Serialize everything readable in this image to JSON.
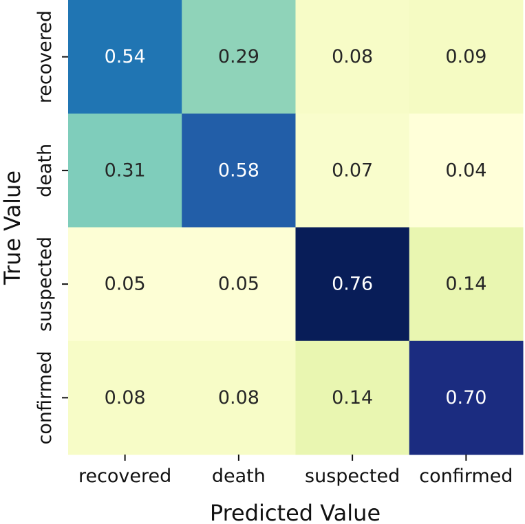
{
  "chart_data": {
    "type": "heatmap",
    "title": "",
    "xlabel": "Predicted Value",
    "ylabel": "True Value",
    "x_categories": [
      "recovered",
      "death",
      "suspected",
      "confirmed"
    ],
    "y_categories": [
      "recovered",
      "death",
      "suspected",
      "confirmed"
    ],
    "value_labels": [
      [
        "0.54",
        "0.29",
        "0.08",
        "0.09"
      ],
      [
        "0.31",
        "0.58",
        "0.07",
        "0.04"
      ],
      [
        "0.05",
        "0.05",
        "0.76",
        "0.14"
      ],
      [
        "0.08",
        "0.08",
        "0.14",
        "0.70"
      ]
    ],
    "colormap": "YlGnBu",
    "colorbar": false,
    "grid": false
  }
}
